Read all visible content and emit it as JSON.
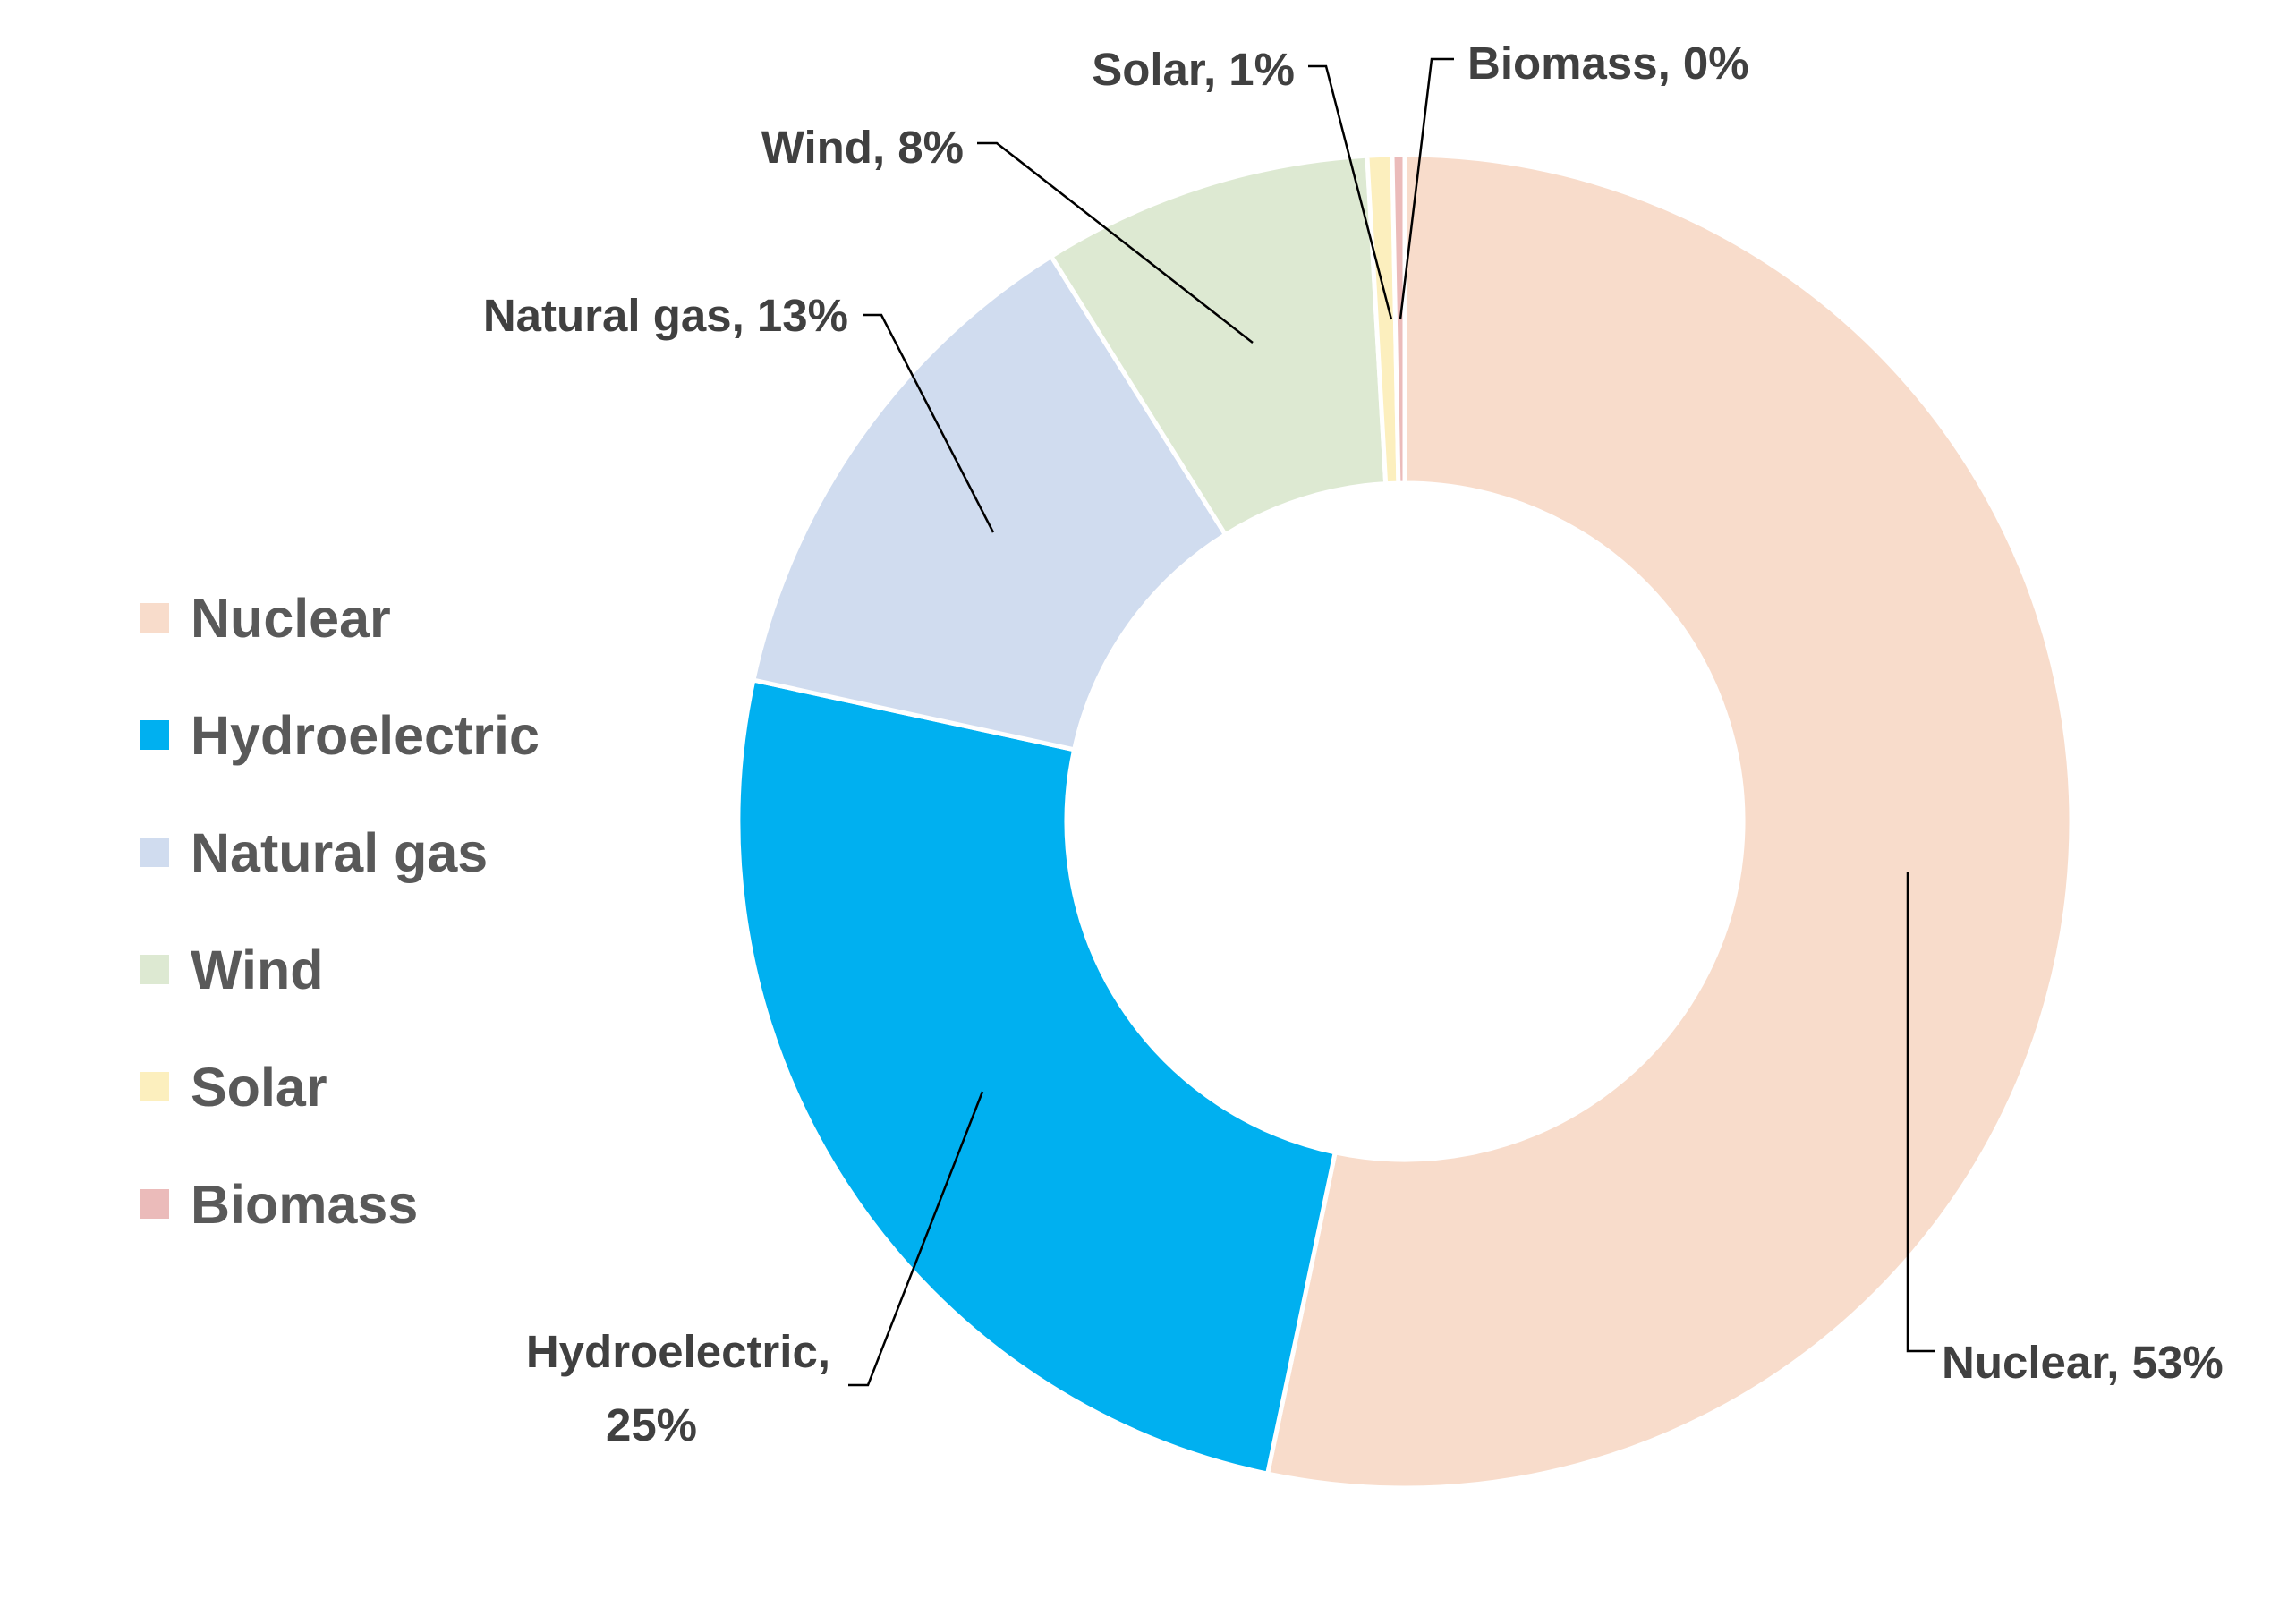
{
  "chart_data": {
    "type": "pie",
    "donut": true,
    "title": "",
    "categories": [
      "Nuclear",
      "Hydroelectric",
      "Natural gas",
      "Wind",
      "Solar",
      "Biomass"
    ],
    "series": [
      {
        "values": [
          53.3,
          25.1,
          12.7,
          8.0,
          0.6,
          0.3
        ]
      }
    ],
    "colors": [
      "#F8DCCB",
      "#00B0F0",
      "#D0DCEF",
      "#DDE9D2",
      "#FCEFBE",
      "#EBBBBA"
    ],
    "data_labels": [
      {
        "lines": [
          "Nuclear, 53%"
        ]
      },
      {
        "lines": [
          "Hydroelectric,",
          "25%"
        ]
      },
      {
        "lines": [
          "Natural gas, 13%"
        ]
      },
      {
        "lines": [
          "Wind, 8%"
        ]
      },
      {
        "lines": [
          "Solar, 1%"
        ]
      },
      {
        "lines": [
          "Biomass, 0%"
        ]
      }
    ],
    "legend": {
      "position": "left",
      "items": [
        "Nuclear",
        "Hydroelectric",
        "Natural gas",
        "Wind",
        "Solar",
        "Biomass"
      ]
    }
  }
}
